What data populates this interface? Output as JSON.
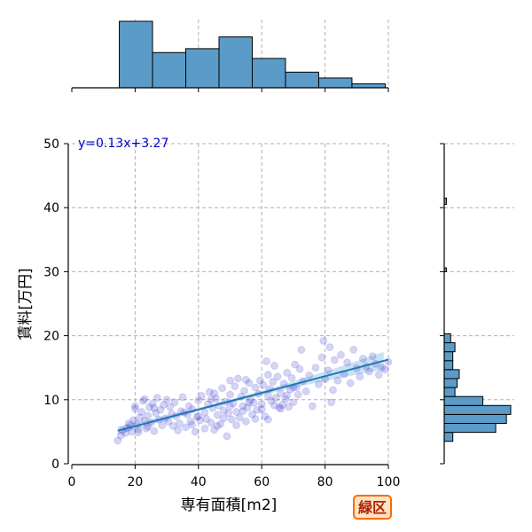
{
  "chart_data": {
    "type": "scatter",
    "xlabel": "専有面積[m2]",
    "ylabel": "賃料[万円]",
    "xlim": [
      0,
      100
    ],
    "ylim": [
      0,
      50
    ],
    "x_ticks": [
      0,
      20,
      40,
      60,
      80,
      100
    ],
    "y_ticks": [
      0,
      10,
      20,
      30,
      40,
      50
    ],
    "grid": true,
    "annotation": "y=0.13x+3.27",
    "badge": "緑区",
    "colors": {
      "points": "#3a3ad0",
      "fit_line": "#1f77b4",
      "ci_band": "#a6cde8",
      "hist": "#5b9bc8",
      "annotation": "#0000cc",
      "badge_border": "#ff6a00"
    },
    "regression": {
      "slope": 0.13,
      "intercept": 3.27,
      "x_range": [
        14.5,
        100
      ]
    },
    "points": [
      [
        14.5,
        3.6
      ],
      [
        15.5,
        4.4
      ],
      [
        16,
        5.2
      ],
      [
        17,
        4.8
      ],
      [
        17.5,
        5.6
      ],
      [
        18.5,
        6.0
      ],
      [
        19,
        5.0
      ],
      [
        19.5,
        6.8
      ],
      [
        20,
        8.6
      ],
      [
        20,
        9.0
      ],
      [
        20.5,
        6.2
      ],
      [
        21,
        5.4
      ],
      [
        21.5,
        7.2
      ],
      [
        22,
        8.1
      ],
      [
        22.5,
        9.8
      ],
      [
        23,
        6.7
      ],
      [
        23,
        10.1
      ],
      [
        24,
        5.8
      ],
      [
        24,
        7.5
      ],
      [
        24.5,
        8.8
      ],
      [
        25,
        6.4
      ],
      [
        25.5,
        9.4
      ],
      [
        26,
        5.1
      ],
      [
        26.5,
        7.9
      ],
      [
        27,
        10.3
      ],
      [
        27.5,
        6.9
      ],
      [
        28,
        8.4
      ],
      [
        29,
        9.2
      ],
      [
        29.5,
        7.1
      ],
      [
        30,
        10.0
      ],
      [
        30.5,
        6.6
      ],
      [
        31,
        8.9
      ],
      [
        32,
        5.9
      ],
      [
        32.5,
        9.6
      ],
      [
        33,
        7.4
      ],
      [
        34,
        6.3
      ],
      [
        34.5,
        8.2
      ],
      [
        35,
        10.4
      ],
      [
        36,
        5.7
      ],
      [
        36.5,
        7.7
      ],
      [
        37,
        9.0
      ],
      [
        38,
        6.1
      ],
      [
        38,
        8.5
      ],
      [
        39,
        5.0
      ],
      [
        39.5,
        7.3
      ],
      [
        40,
        9.9
      ],
      [
        40.5,
        6.8
      ],
      [
        41,
        10.6
      ],
      [
        42,
        8.0
      ],
      [
        42,
        5.5
      ],
      [
        42.5,
        7.0
      ],
      [
        43,
        9.3
      ],
      [
        43.5,
        11.2
      ],
      [
        44,
        6.4
      ],
      [
        44.5,
        8.7
      ],
      [
        45,
        5.3
      ],
      [
        45.5,
        10.2
      ],
      [
        46,
        7.6
      ],
      [
        46.5,
        9.1
      ],
      [
        47,
        6.2
      ],
      [
        47.5,
        11.8
      ],
      [
        48,
        8.3
      ],
      [
        48.5,
        9.7
      ],
      [
        49,
        4.3
      ],
      [
        49.5,
        7.9
      ],
      [
        50,
        10.8
      ],
      [
        50.5,
        6.9
      ],
      [
        51,
        9.4
      ],
      [
        51.5,
        12.1
      ],
      [
        52,
        8.1
      ],
      [
        52.5,
        13.3
      ],
      [
        53,
        7.2
      ],
      [
        53.5,
        10.5
      ],
      [
        54,
        9.0
      ],
      [
        54.5,
        11.4
      ],
      [
        55,
        6.6
      ],
      [
        55.5,
        8.8
      ],
      [
        56,
        12.6
      ],
      [
        56.5,
        10.0
      ],
      [
        57,
        7.7
      ],
      [
        57.5,
        9.5
      ],
      [
        58,
        11.9
      ],
      [
        58.5,
        8.4
      ],
      [
        59,
        10.9
      ],
      [
        59.5,
        13.0
      ],
      [
        60,
        9.3
      ],
      [
        60.5,
        12.3
      ],
      [
        61,
        7.4
      ],
      [
        61.5,
        16.0
      ],
      [
        62,
        10.6
      ],
      [
        62.5,
        11.7
      ],
      [
        63,
        9.8
      ],
      [
        63.5,
        12.8
      ],
      [
        64,
        15.3
      ],
      [
        64.5,
        10.3
      ],
      [
        65,
        13.6
      ],
      [
        65.5,
        8.8
      ],
      [
        66,
        11.0
      ],
      [
        66.5,
        9.2
      ],
      [
        67,
        12.5
      ],
      [
        67.5,
        10.1
      ],
      [
        68,
        14.2
      ],
      [
        68.5,
        8.9
      ],
      [
        69,
        11.6
      ],
      [
        69.5,
        13.4
      ],
      [
        70,
        9.6
      ],
      [
        70.5,
        15.5
      ],
      [
        71,
        12.0
      ],
      [
        71.5,
        10.8
      ],
      [
        72,
        14.8
      ],
      [
        72.5,
        17.8
      ],
      [
        73,
        12.9
      ],
      [
        74,
        11.3
      ],
      [
        75,
        13.8
      ],
      [
        76,
        9.0
      ],
      [
        77,
        15.0
      ],
      [
        78,
        12.4
      ],
      [
        79,
        16.6
      ],
      [
        79.5,
        19.2
      ],
      [
        80,
        13.2
      ],
      [
        81,
        14.6
      ],
      [
        81.5,
        18.2
      ],
      [
        82,
        9.6
      ],
      [
        82.5,
        11.5
      ],
      [
        83,
        16.2
      ],
      [
        84,
        13.0
      ],
      [
        85,
        17.0
      ],
      [
        86,
        14.0
      ],
      [
        87,
        15.8
      ],
      [
        88,
        12.6
      ],
      [
        89,
        17.8
      ],
      [
        90,
        14.9
      ],
      [
        91,
        13.6
      ],
      [
        92,
        16.4
      ],
      [
        93,
        15.2
      ],
      [
        94,
        14.4
      ],
      [
        95,
        16.8
      ],
      [
        96,
        15.6
      ],
      [
        97,
        13.9
      ],
      [
        98,
        15.0
      ],
      [
        99,
        14.7
      ],
      [
        100,
        15.9
      ],
      [
        18,
        6.3
      ],
      [
        21,
        4.9
      ],
      [
        23.5,
        5.5
      ],
      [
        26,
        8.7
      ],
      [
        28.5,
        6.0
      ],
      [
        31.5,
        7.8
      ],
      [
        33.5,
        5.2
      ],
      [
        35.5,
        8.0
      ],
      [
        37.5,
        6.6
      ],
      [
        40,
        7.4
      ],
      [
        44,
        10.0
      ],
      [
        46,
        5.9
      ],
      [
        48,
        7.1
      ],
      [
        50,
        9.0
      ],
      [
        52,
        6.0
      ],
      [
        54,
        8.2
      ],
      [
        56,
        9.6
      ],
      [
        58,
        7.0
      ],
      [
        60,
        8.5
      ],
      [
        62,
        6.9
      ],
      [
        64,
        9.1
      ],
      [
        66,
        8.6
      ],
      [
        68,
        10.7
      ],
      [
        70,
        11.9
      ],
      [
        55,
        13.1
      ],
      [
        62,
        13.9
      ],
      [
        50,
        13.0
      ],
      [
        45,
        11.0
      ]
    ],
    "marginal_x_hist": {
      "bin_edges": [
        15,
        25.5,
        36,
        46.5,
        57,
        67.5,
        78,
        88.5,
        99
      ],
      "counts": [
        34,
        18,
        20,
        26,
        15,
        8,
        5,
        2
      ]
    },
    "marginal_y_hist": {
      "bin_edges": [
        3.5,
        4.9,
        6.3,
        7.7,
        9.1,
        10.5,
        11.9,
        13.3,
        14.7,
        16.1,
        17.5,
        18.9,
        20.3,
        30.0,
        30.6,
        40.5,
        41.5
      ],
      "counts": [
        4,
        24,
        29,
        31,
        18,
        5,
        6,
        7,
        4,
        4,
        5,
        3,
        0,
        1,
        0,
        1
      ]
    }
  }
}
